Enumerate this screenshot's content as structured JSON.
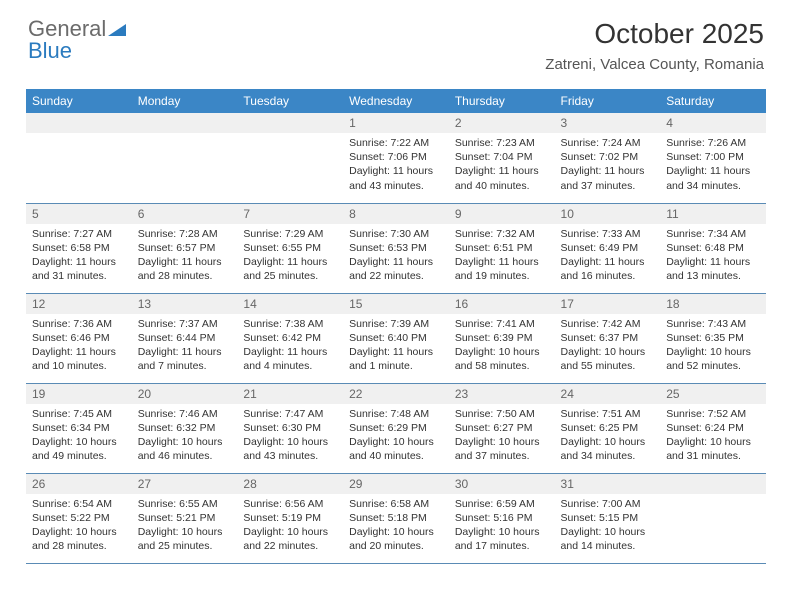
{
  "logo": {
    "text1": "General",
    "text2": "Blue"
  },
  "title": "October 2025",
  "location": "Zatreni, Valcea County, Romania",
  "colors": {
    "header_bg": "#3b86c6",
    "header_text": "#ffffff",
    "daynum_bg": "#f0f0f0",
    "row_border": "#5a8bb5",
    "logo_gray": "#6b6b6b",
    "logo_blue": "#2b7bbf"
  },
  "day_headers": [
    "Sunday",
    "Monday",
    "Tuesday",
    "Wednesday",
    "Thursday",
    "Friday",
    "Saturday"
  ],
  "weeks": [
    [
      null,
      null,
      null,
      {
        "n": "1",
        "sr": "7:22 AM",
        "ss": "7:06 PM",
        "dl": "11 hours and 43 minutes."
      },
      {
        "n": "2",
        "sr": "7:23 AM",
        "ss": "7:04 PM",
        "dl": "11 hours and 40 minutes."
      },
      {
        "n": "3",
        "sr": "7:24 AM",
        "ss": "7:02 PM",
        "dl": "11 hours and 37 minutes."
      },
      {
        "n": "4",
        "sr": "7:26 AM",
        "ss": "7:00 PM",
        "dl": "11 hours and 34 minutes."
      }
    ],
    [
      {
        "n": "5",
        "sr": "7:27 AM",
        "ss": "6:58 PM",
        "dl": "11 hours and 31 minutes."
      },
      {
        "n": "6",
        "sr": "7:28 AM",
        "ss": "6:57 PM",
        "dl": "11 hours and 28 minutes."
      },
      {
        "n": "7",
        "sr": "7:29 AM",
        "ss": "6:55 PM",
        "dl": "11 hours and 25 minutes."
      },
      {
        "n": "8",
        "sr": "7:30 AM",
        "ss": "6:53 PM",
        "dl": "11 hours and 22 minutes."
      },
      {
        "n": "9",
        "sr": "7:32 AM",
        "ss": "6:51 PM",
        "dl": "11 hours and 19 minutes."
      },
      {
        "n": "10",
        "sr": "7:33 AM",
        "ss": "6:49 PM",
        "dl": "11 hours and 16 minutes."
      },
      {
        "n": "11",
        "sr": "7:34 AM",
        "ss": "6:48 PM",
        "dl": "11 hours and 13 minutes."
      }
    ],
    [
      {
        "n": "12",
        "sr": "7:36 AM",
        "ss": "6:46 PM",
        "dl": "11 hours and 10 minutes."
      },
      {
        "n": "13",
        "sr": "7:37 AM",
        "ss": "6:44 PM",
        "dl": "11 hours and 7 minutes."
      },
      {
        "n": "14",
        "sr": "7:38 AM",
        "ss": "6:42 PM",
        "dl": "11 hours and 4 minutes."
      },
      {
        "n": "15",
        "sr": "7:39 AM",
        "ss": "6:40 PM",
        "dl": "11 hours and 1 minute."
      },
      {
        "n": "16",
        "sr": "7:41 AM",
        "ss": "6:39 PM",
        "dl": "10 hours and 58 minutes."
      },
      {
        "n": "17",
        "sr": "7:42 AM",
        "ss": "6:37 PM",
        "dl": "10 hours and 55 minutes."
      },
      {
        "n": "18",
        "sr": "7:43 AM",
        "ss": "6:35 PM",
        "dl": "10 hours and 52 minutes."
      }
    ],
    [
      {
        "n": "19",
        "sr": "7:45 AM",
        "ss": "6:34 PM",
        "dl": "10 hours and 49 minutes."
      },
      {
        "n": "20",
        "sr": "7:46 AM",
        "ss": "6:32 PM",
        "dl": "10 hours and 46 minutes."
      },
      {
        "n": "21",
        "sr": "7:47 AM",
        "ss": "6:30 PM",
        "dl": "10 hours and 43 minutes."
      },
      {
        "n": "22",
        "sr": "7:48 AM",
        "ss": "6:29 PM",
        "dl": "10 hours and 40 minutes."
      },
      {
        "n": "23",
        "sr": "7:50 AM",
        "ss": "6:27 PM",
        "dl": "10 hours and 37 minutes."
      },
      {
        "n": "24",
        "sr": "7:51 AM",
        "ss": "6:25 PM",
        "dl": "10 hours and 34 minutes."
      },
      {
        "n": "25",
        "sr": "7:52 AM",
        "ss": "6:24 PM",
        "dl": "10 hours and 31 minutes."
      }
    ],
    [
      {
        "n": "26",
        "sr": "6:54 AM",
        "ss": "5:22 PM",
        "dl": "10 hours and 28 minutes."
      },
      {
        "n": "27",
        "sr": "6:55 AM",
        "ss": "5:21 PM",
        "dl": "10 hours and 25 minutes."
      },
      {
        "n": "28",
        "sr": "6:56 AM",
        "ss": "5:19 PM",
        "dl": "10 hours and 22 minutes."
      },
      {
        "n": "29",
        "sr": "6:58 AM",
        "ss": "5:18 PM",
        "dl": "10 hours and 20 minutes."
      },
      {
        "n": "30",
        "sr": "6:59 AM",
        "ss": "5:16 PM",
        "dl": "10 hours and 17 minutes."
      },
      {
        "n": "31",
        "sr": "7:00 AM",
        "ss": "5:15 PM",
        "dl": "10 hours and 14 minutes."
      },
      null
    ]
  ],
  "labels": {
    "sunrise": "Sunrise: ",
    "sunset": "Sunset: ",
    "daylight": "Daylight: "
  }
}
